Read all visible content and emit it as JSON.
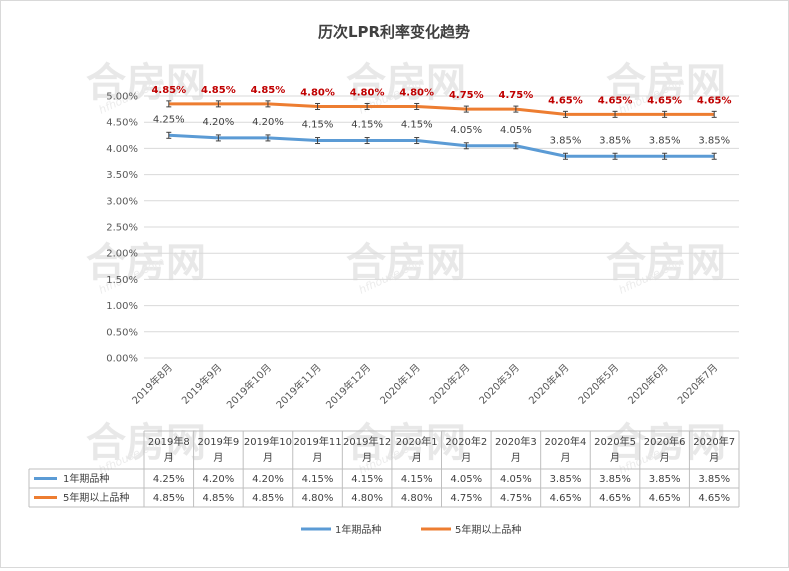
{
  "chart_data": {
    "type": "line",
    "title": "历次LPR利率变化趋势",
    "categories": [
      "2019年8月",
      "2019年9月",
      "2019年10月",
      "2019年11月",
      "2019年12月",
      "2020年1月",
      "2020年2月",
      "2020年3月",
      "2020年4月",
      "2020年5月",
      "2020年6月",
      "2020年7月"
    ],
    "categories_table": [
      [
        "2019年8",
        "月"
      ],
      [
        "2019年9",
        "月"
      ],
      [
        "2019年10",
        "月"
      ],
      [
        "2019年11",
        "月"
      ],
      [
        "2019年12",
        "月"
      ],
      [
        "2020年1",
        "月"
      ],
      [
        "2020年2",
        "月"
      ],
      [
        "2020年3",
        "月"
      ],
      [
        "2020年4",
        "月"
      ],
      [
        "2020年5",
        "月"
      ],
      [
        "2020年6",
        "月"
      ],
      [
        "2020年7",
        "月"
      ]
    ],
    "series": [
      {
        "name": "1年期品种",
        "color": "#5b9bd5",
        "values": [
          4.25,
          4.2,
          4.2,
          4.15,
          4.15,
          4.15,
          4.05,
          4.05,
          3.85,
          3.85,
          3.85,
          3.85
        ],
        "labels": [
          "4.25%",
          "4.20%",
          "4.20%",
          "4.15%",
          "4.15%",
          "4.15%",
          "4.05%",
          "4.05%",
          "3.85%",
          "3.85%",
          "3.85%",
          "3.85%"
        ]
      },
      {
        "name": "5年期以上品种",
        "color": "#ed7d31",
        "values": [
          4.85,
          4.85,
          4.85,
          4.8,
          4.8,
          4.8,
          4.75,
          4.75,
          4.65,
          4.65,
          4.65,
          4.65
        ],
        "labels": [
          "4.85%",
          "4.85%",
          "4.85%",
          "4.80%",
          "4.80%",
          "4.80%",
          "4.75%",
          "4.75%",
          "4.65%",
          "4.65%",
          "4.65%",
          "4.65%"
        ]
      }
    ],
    "ylim": [
      0,
      5
    ],
    "yticks": [
      "0.00%",
      "0.50%",
      "1.00%",
      "1.50%",
      "2.00%",
      "2.50%",
      "3.00%",
      "3.50%",
      "4.00%",
      "4.50%",
      "5.00%"
    ],
    "label_color_5yr": "#c00000",
    "grid": true,
    "legend": "bottom",
    "data_table": true
  },
  "watermark": {
    "text": "合房网",
    "sub": "hfhouse.com"
  }
}
